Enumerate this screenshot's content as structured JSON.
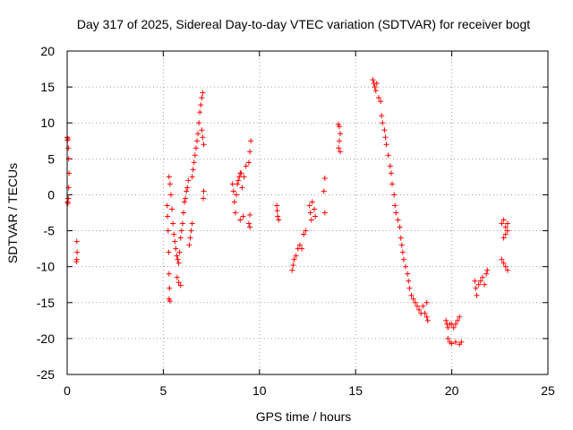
{
  "chart_data": {
    "type": "scatter",
    "title": "Day 317 of 2025, Sidereal Day-to-day VTEC variation (SDTVAR) for receiver bogt",
    "xlabel": "GPS time / hours",
    "ylabel": "SDTVAR / TECUs",
    "xlim": [
      0,
      25
    ],
    "ylim": [
      -25,
      20
    ],
    "x_ticks": [
      0,
      5,
      10,
      15,
      20,
      25
    ],
    "x_tick_labels": [
      "0",
      "5",
      "10",
      "15",
      "20",
      "25"
    ],
    "y_ticks": [
      -25,
      -20,
      -15,
      -10,
      -5,
      0,
      5,
      10,
      15,
      20
    ],
    "y_tick_labels": [
      "-25",
      "-20",
      "-15",
      "-10",
      "-5",
      "0",
      "5",
      "10",
      "15",
      "20"
    ],
    "grid": true,
    "marker": "plus",
    "color": "#ff0000",
    "series": [
      {
        "name": "SDTVAR",
        "points": [
          [
            0.0,
            8.0
          ],
          [
            0.02,
            7.6
          ],
          [
            0.04,
            7.8
          ],
          [
            0.06,
            6.5
          ],
          [
            0.08,
            5.0
          ],
          [
            0.1,
            3.0
          ],
          [
            0.08,
            1.0
          ],
          [
            0.06,
            -0.5
          ],
          [
            0.04,
            -1.2
          ],
          [
            0.02,
            -1.0
          ],
          [
            0.5,
            -6.5
          ],
          [
            0.52,
            -8.0
          ],
          [
            0.5,
            -9.0
          ],
          [
            0.48,
            -9.3
          ],
          [
            5.2,
            -1.5
          ],
          [
            5.22,
            -3.0
          ],
          [
            5.25,
            -5.0
          ],
          [
            5.28,
            -8.0
          ],
          [
            5.3,
            -11.0
          ],
          [
            5.32,
            -13.0
          ],
          [
            5.3,
            -14.5
          ],
          [
            5.35,
            -14.8
          ],
          [
            5.3,
            2.5
          ],
          [
            5.35,
            1.5
          ],
          [
            5.4,
            0.0
          ],
          [
            5.45,
            -2.0
          ],
          [
            5.5,
            -4.0
          ],
          [
            5.55,
            -5.5
          ],
          [
            5.6,
            -6.5
          ],
          [
            5.65,
            -7.5
          ],
          [
            5.7,
            -8.5
          ],
          [
            5.72,
            -11.5
          ],
          [
            5.8,
            -12.2
          ],
          [
            5.9,
            -12.6
          ],
          [
            5.75,
            -9.0
          ],
          [
            5.8,
            -9.5
          ],
          [
            5.85,
            -8.0
          ],
          [
            5.9,
            -6.0
          ],
          [
            5.95,
            -5.0
          ],
          [
            6.0,
            -4.0
          ],
          [
            6.05,
            -2.5
          ],
          [
            6.1,
            -1.0
          ],
          [
            6.15,
            -0.5
          ],
          [
            6.2,
            0.5
          ],
          [
            6.25,
            1.0
          ],
          [
            6.3,
            2.0
          ],
          [
            6.35,
            -7.0
          ],
          [
            6.4,
            -6.0
          ],
          [
            6.45,
            -5.0
          ],
          [
            6.5,
            -4.0
          ],
          [
            6.5,
            2.5
          ],
          [
            6.55,
            3.5
          ],
          [
            6.6,
            4.5
          ],
          [
            6.65,
            5.5
          ],
          [
            6.7,
            6.5
          ],
          [
            6.75,
            7.5
          ],
          [
            6.8,
            8.5
          ],
          [
            6.85,
            10.0
          ],
          [
            6.9,
            11.5
          ],
          [
            6.95,
            12.5
          ],
          [
            7.0,
            13.5
          ],
          [
            7.05,
            14.2
          ],
          [
            7.0,
            9.0
          ],
          [
            7.05,
            8.0
          ],
          [
            7.1,
            7.0
          ],
          [
            7.1,
            0.5
          ],
          [
            7.08,
            -0.5
          ],
          [
            8.6,
            1.5
          ],
          [
            8.65,
            0.5
          ],
          [
            8.7,
            -1.0
          ],
          [
            8.75,
            -2.5
          ],
          [
            8.8,
            0.0
          ],
          [
            8.85,
            1.5
          ],
          [
            8.9,
            2.0
          ],
          [
            8.95,
            2.5
          ],
          [
            9.0,
            3.0
          ],
          [
            9.05,
            3.0
          ],
          [
            9.1,
            1.0
          ],
          [
            9.15,
            -3.0
          ],
          [
            9.0,
            -3.5
          ],
          [
            9.2,
            2.5
          ],
          [
            9.3,
            4.0
          ],
          [
            9.45,
            4.5
          ],
          [
            9.5,
            6.0
          ],
          [
            9.55,
            7.5
          ],
          [
            9.5,
            -2.8
          ],
          [
            9.45,
            -4.0
          ],
          [
            9.5,
            -4.5
          ],
          [
            10.9,
            -1.5
          ],
          [
            10.92,
            -2.2
          ],
          [
            10.95,
            -3.0
          ],
          [
            11.0,
            -3.5
          ],
          [
            11.7,
            -10.5
          ],
          [
            11.75,
            -9.8
          ],
          [
            11.8,
            -9.0
          ],
          [
            11.9,
            -8.5
          ],
          [
            12.0,
            -7.5
          ],
          [
            12.1,
            -7.0
          ],
          [
            12.2,
            -7.5
          ],
          [
            12.3,
            -5.5
          ],
          [
            12.4,
            -5.0
          ],
          [
            12.6,
            -1.5
          ],
          [
            12.65,
            -2.5
          ],
          [
            12.7,
            -3.5
          ],
          [
            12.75,
            -1.0
          ],
          [
            12.85,
            -2.0
          ],
          [
            12.9,
            -3.0
          ],
          [
            13.4,
            2.3
          ],
          [
            13.35,
            0.5
          ],
          [
            13.4,
            -2.5
          ],
          [
            14.1,
            9.8
          ],
          [
            14.15,
            9.5
          ],
          [
            14.2,
            8.5
          ],
          [
            14.15,
            7.5
          ],
          [
            14.12,
            6.5
          ],
          [
            14.2,
            6.0
          ],
          [
            15.9,
            16.0
          ],
          [
            15.95,
            15.5
          ],
          [
            16.0,
            15.0
          ],
          [
            16.05,
            14.5
          ],
          [
            16.1,
            15.5
          ],
          [
            16.2,
            13.5
          ],
          [
            16.3,
            13.0
          ],
          [
            16.35,
            11.0
          ],
          [
            16.4,
            10.0
          ],
          [
            16.5,
            9.0
          ],
          [
            16.55,
            8.0
          ],
          [
            16.6,
            7.0
          ],
          [
            16.7,
            5.5
          ],
          [
            16.8,
            4.0
          ],
          [
            16.85,
            3.0
          ],
          [
            16.9,
            1.5
          ],
          [
            17.0,
            0.0
          ],
          [
            17.05,
            -1.5
          ],
          [
            17.1,
            -2.5
          ],
          [
            17.2,
            -3.5
          ],
          [
            17.3,
            -4.5
          ],
          [
            17.35,
            -6.0
          ],
          [
            17.4,
            -7.0
          ],
          [
            17.45,
            -8.0
          ],
          [
            17.5,
            -9.0
          ],
          [
            17.6,
            -10.0
          ],
          [
            17.7,
            -11.0
          ],
          [
            17.75,
            -12.0
          ],
          [
            17.8,
            -13.0
          ],
          [
            17.9,
            -14.0
          ],
          [
            18.0,
            -14.5
          ],
          [
            18.1,
            -15.0
          ],
          [
            18.2,
            -15.5
          ],
          [
            18.3,
            -16.0
          ],
          [
            18.4,
            -16.5
          ],
          [
            18.5,
            -15.5
          ],
          [
            18.6,
            -16.5
          ],
          [
            18.7,
            -17.0
          ],
          [
            18.75,
            -17.5
          ],
          [
            18.7,
            -15.0
          ],
          [
            19.7,
            -17.5
          ],
          [
            19.75,
            -18.0
          ],
          [
            19.8,
            -18.5
          ],
          [
            19.9,
            -18.0
          ],
          [
            20.0,
            -18.0
          ],
          [
            20.1,
            -18.5
          ],
          [
            20.2,
            -18.0
          ],
          [
            20.3,
            -17.5
          ],
          [
            20.4,
            -17.0
          ],
          [
            19.8,
            -20.0
          ],
          [
            19.9,
            -20.5
          ],
          [
            20.0,
            -20.7
          ],
          [
            20.2,
            -20.5
          ],
          [
            20.4,
            -20.8
          ],
          [
            20.5,
            -20.5
          ],
          [
            21.2,
            -12.0
          ],
          [
            21.25,
            -13.0
          ],
          [
            21.3,
            -14.0
          ],
          [
            21.4,
            -12.5
          ],
          [
            21.5,
            -12.0
          ],
          [
            21.6,
            -11.5
          ],
          [
            21.7,
            -12.5
          ],
          [
            21.8,
            -11.0
          ],
          [
            21.85,
            -10.5
          ],
          [
            22.6,
            -4.0
          ],
          [
            22.7,
            -3.5
          ],
          [
            22.8,
            -4.5
          ],
          [
            22.9,
            -4.0
          ],
          [
            22.7,
            -6.0
          ],
          [
            22.8,
            -5.5
          ],
          [
            22.9,
            -5.0
          ],
          [
            22.6,
            -9.0
          ],
          [
            22.7,
            -9.5
          ],
          [
            22.8,
            -10.0
          ],
          [
            22.9,
            -10.5
          ]
        ]
      }
    ]
  }
}
